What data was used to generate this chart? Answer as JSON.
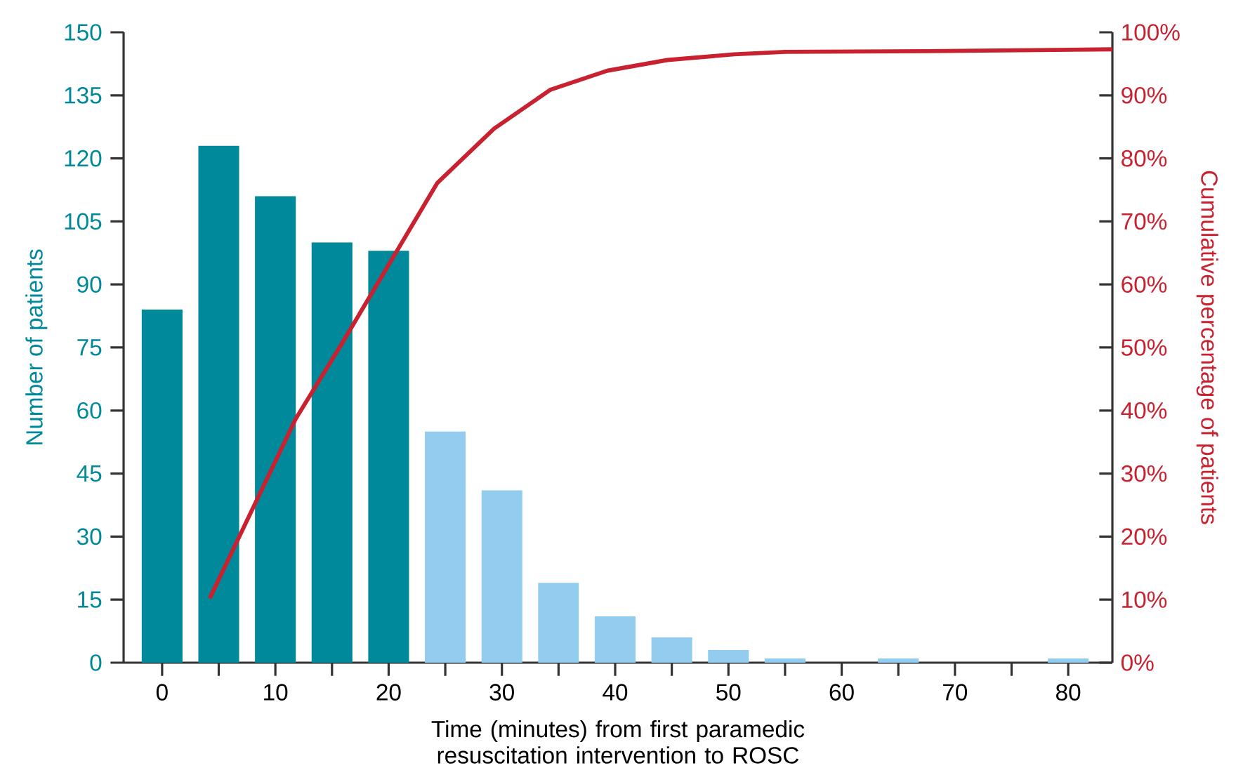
{
  "chart_data": {
    "type": "bar",
    "xlabel": "Time (minutes) from first paramedic resuscitation intervention to ROSC",
    "ylabel": "Number of patients",
    "y2label": "Cumulative percentage of patients",
    "x": [
      0,
      5,
      10,
      15,
      20,
      25,
      30,
      35,
      40,
      45,
      50,
      55,
      60,
      65,
      70,
      75,
      80
    ],
    "xlim": [
      -3.4,
      83.9
    ],
    "xticks": [
      0,
      {
        "value": 5,
        "label": null
      },
      10,
      {
        "value": 15,
        "label": null
      },
      20,
      {
        "value": 25,
        "label": null
      },
      30,
      {
        "value": 35,
        "label": null
      },
      40,
      {
        "value": 45,
        "label": null
      },
      50,
      {
        "value": 55,
        "label": null
      },
      60,
      {
        "value": 65,
        "label": null
      },
      70,
      {
        "value": 75,
        "label": null
      },
      80
    ],
    "ylim": [
      0,
      150
    ],
    "yticks": [
      0,
      15,
      30,
      45,
      60,
      75,
      90,
      105,
      120,
      135,
      150
    ],
    "y2lim": [
      0,
      100
    ],
    "y2ticks": [
      {
        "value": 0,
        "label": "0%"
      },
      {
        "value": 10,
        "label": "10%"
      },
      {
        "value": 20,
        "label": "20%"
      },
      {
        "value": 30,
        "label": "30%"
      },
      {
        "value": 40,
        "label": "40%"
      },
      {
        "value": 50,
        "label": "50%"
      },
      {
        "value": 60,
        "label": "60%"
      },
      {
        "value": 70,
        "label": "70%"
      },
      {
        "value": 80,
        "label": "80%"
      },
      {
        "value": 90,
        "label": "90%"
      },
      {
        "value": 100,
        "label": "100%"
      }
    ],
    "series": [
      {
        "values": [
          84,
          123,
          111,
          100,
          98,
          55,
          41,
          19,
          11,
          6,
          3,
          1,
          0,
          1,
          0,
          0,
          1
        ],
        "colors": [
          "#00889b",
          "#00889b",
          "#00889b",
          "#00889b",
          "#00889b",
          "#92cdef",
          "#92cdef",
          "#92cdef",
          "#92cdef",
          "#92cdef",
          "#92cdef",
          "#92cdef",
          "#92cdef",
          "#92cdef",
          "#92cdef",
          "#92cdef",
          "#92cdef"
        ]
      },
      {
        "type": "line",
        "axis": "y2",
        "color": "#c8212f",
        "x": [
          4.2,
          11.8,
          15.8,
          24.3,
          29.3,
          34.3,
          39.3,
          44.6,
          50.5,
          55,
          67.5,
          83.9
        ],
        "values": [
          10.2,
          38.7,
          50.4,
          76.1,
          84.7,
          90.9,
          93.9,
          95.6,
          96.5,
          96.9,
          97,
          97.3
        ]
      }
    ]
  }
}
